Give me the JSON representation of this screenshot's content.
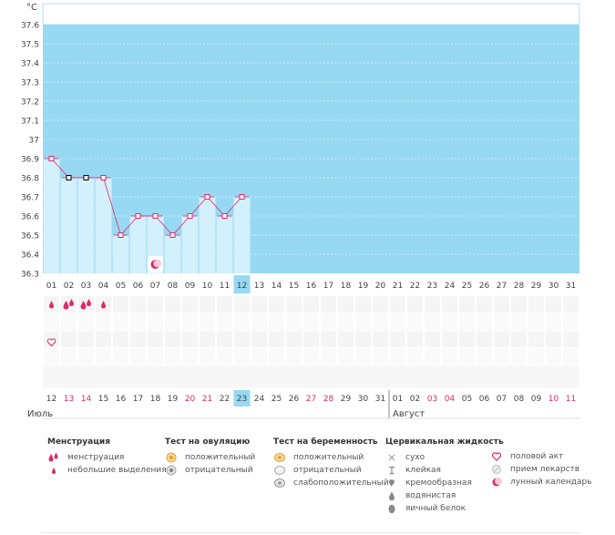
{
  "chart_data": {
    "type": "line",
    "title": "",
    "ylabel": "°C",
    "xlabel": "",
    "ylim": [
      36.3,
      37.6
    ],
    "yticks": [
      "37.6",
      "37.5",
      "37.4",
      "37.3",
      "37.2",
      "37.1",
      "37",
      "36.9",
      "36.8",
      "36.7",
      "36.6",
      "36.5",
      "36.4",
      "36.3"
    ],
    "cycle_days": [
      "01",
      "02",
      "03",
      "04",
      "05",
      "06",
      "07",
      "08",
      "09",
      "10",
      "11",
      "12",
      "13",
      "14",
      "15",
      "16",
      "17",
      "18",
      "19",
      "20",
      "21",
      "22",
      "23",
      "24",
      "25",
      "26",
      "27",
      "28",
      "29",
      "30",
      "31"
    ],
    "current_cycle_day": "12",
    "temperature": [
      36.9,
      36.8,
      36.8,
      36.8,
      36.5,
      36.6,
      36.6,
      36.5,
      36.6,
      36.7,
      36.6,
      36.7
    ],
    "cover_line_days": [
      2,
      3
    ],
    "moon_day": 7,
    "menstruation": [
      {
        "day": 1,
        "kind": "menstruation-light"
      },
      {
        "day": 2,
        "kind": "menstruation-heavy"
      },
      {
        "day": 3,
        "kind": "menstruation-heavy"
      },
      {
        "day": 4,
        "kind": "menstruation-light"
      }
    ],
    "intercourse_days": [
      1
    ],
    "calendar_dates": [
      {
        "label": "12",
        "weekend": false
      },
      {
        "label": "13",
        "weekend": true
      },
      {
        "label": "14",
        "weekend": true
      },
      {
        "label": "15",
        "weekend": false
      },
      {
        "label": "16",
        "weekend": false
      },
      {
        "label": "17",
        "weekend": false
      },
      {
        "label": "18",
        "weekend": false
      },
      {
        "label": "19",
        "weekend": false
      },
      {
        "label": "20",
        "weekend": true
      },
      {
        "label": "21",
        "weekend": true
      },
      {
        "label": "22",
        "weekend": false
      },
      {
        "label": "23",
        "weekend": false
      },
      {
        "label": "24",
        "weekend": false
      },
      {
        "label": "25",
        "weekend": false
      },
      {
        "label": "26",
        "weekend": false
      },
      {
        "label": "27",
        "weekend": true
      },
      {
        "label": "28",
        "weekend": true
      },
      {
        "label": "29",
        "weekend": false
      },
      {
        "label": "30",
        "weekend": false
      },
      {
        "label": "31",
        "weekend": false
      },
      {
        "label": "01",
        "weekend": false
      },
      {
        "label": "02",
        "weekend": false
      },
      {
        "label": "03",
        "weekend": true
      },
      {
        "label": "04",
        "weekend": true
      },
      {
        "label": "05",
        "weekend": false
      },
      {
        "label": "06",
        "weekend": false
      },
      {
        "label": "07",
        "weekend": false
      },
      {
        "label": "08",
        "weekend": false
      },
      {
        "label": "09",
        "weekend": false
      },
      {
        "label": "10",
        "weekend": true
      },
      {
        "label": "11",
        "weekend": true
      }
    ],
    "today_date": "23",
    "months": [
      "Июль",
      "Август"
    ]
  },
  "colors": {
    "chart_bg": "#97d9f2",
    "bar": "#d3f0fd",
    "line": "#e0286b",
    "accent": "#e0286b",
    "weekend": "#e0286b",
    "grid_row": "#f4f4f4",
    "today": "#97d9f2"
  },
  "legend": {
    "menstruation": {
      "title": "Менструация",
      "items": [
        {
          "label": "менструация",
          "icon": "drop-double-icon"
        },
        {
          "label": "небольшие выделения",
          "icon": "drop-small-icon"
        }
      ]
    },
    "ovulation": {
      "title": "Тест на овуляцию",
      "items": [
        {
          "label": "положительный",
          "icon": "ovulation-positive-icon"
        },
        {
          "label": "отрицательный",
          "icon": "ovulation-negative-icon"
        }
      ]
    },
    "pregnancy": {
      "title": "Тест на беременность",
      "items": [
        {
          "label": "положительный",
          "icon": "pregnancy-positive-icon"
        },
        {
          "label": "отрицательный",
          "icon": "pregnancy-negative-icon"
        },
        {
          "label": "слабоположительный",
          "icon": "pregnancy-weak-icon"
        }
      ]
    },
    "cervical": {
      "title": "Цервикальная жидкость",
      "items": [
        {
          "label": "сухо",
          "icon": "dry-icon"
        },
        {
          "label": "клейкая",
          "icon": "sticky-icon"
        },
        {
          "label": "кремообразная",
          "icon": "creamy-icon"
        },
        {
          "label": "водянистая",
          "icon": "watery-icon"
        },
        {
          "label": "яичный белок",
          "icon": "egg-white-icon"
        }
      ]
    },
    "other": {
      "items": [
        {
          "label": "половой акт",
          "icon": "heart-icon"
        },
        {
          "label": "прием лекарств",
          "icon": "pill-icon"
        },
        {
          "label": "лунный календарь",
          "icon": "moon-icon"
        }
      ]
    }
  }
}
